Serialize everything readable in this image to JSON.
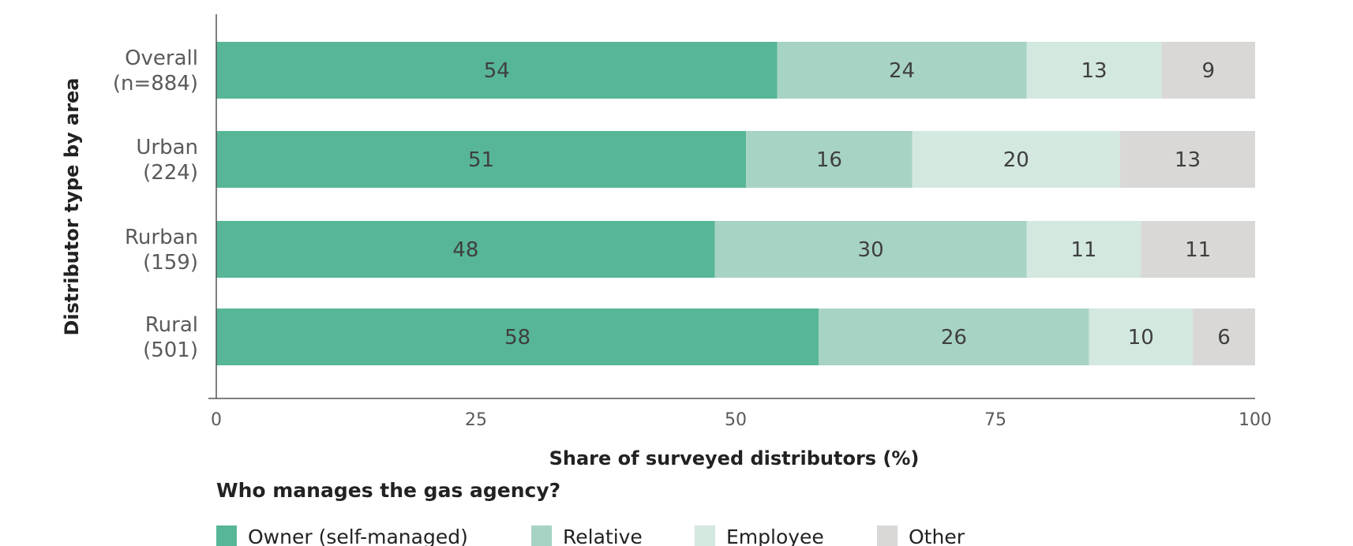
{
  "chart_data": {
    "type": "bar",
    "orientation": "horizontal",
    "stacked": true,
    "categories": [
      [
        "Overall",
        "(n=884)"
      ],
      [
        "Urban",
        "(224)"
      ],
      [
        "Rurban",
        "(159)"
      ],
      [
        "Rural",
        "(501)"
      ]
    ],
    "series": [
      {
        "name": "Owner (self-managed)",
        "color": "#57b698",
        "values": [
          54,
          51,
          48,
          58
        ]
      },
      {
        "name": "Relative",
        "color": "#a7d3c4",
        "values": [
          24,
          16,
          30,
          26
        ]
      },
      {
        "name": "Employee",
        "color": "#d3e8df",
        "values": [
          13,
          20,
          11,
          10
        ]
      },
      {
        "name": "Other",
        "color": "#d9d8d6",
        "values": [
          9,
          13,
          11,
          6
        ]
      }
    ],
    "xlabel": "Share of surveyed distributors (%)",
    "ylabel": "Distributor type by area",
    "xlim": [
      0,
      100
    ],
    "xticks": [
      0,
      25,
      50,
      75,
      100
    ],
    "legend": {
      "title": "Who manages the gas agency?",
      "position": "bottom-left"
    },
    "grid": false
  }
}
